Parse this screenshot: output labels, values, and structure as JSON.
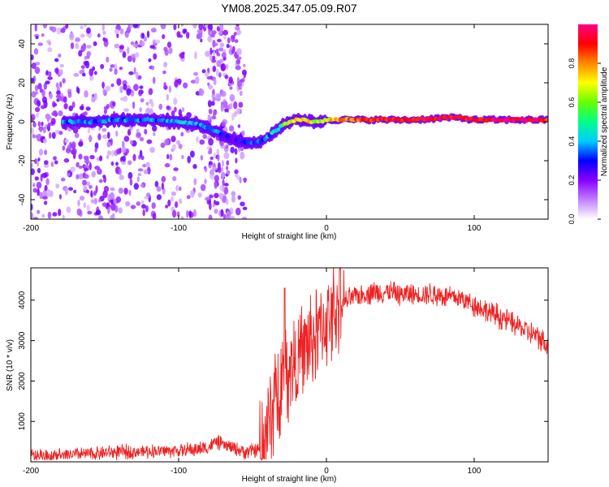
{
  "title": "YM08.2025.347.05.09.R07",
  "chart_data": [
    {
      "type": "heatmap",
      "title": "YM08.2025.347.05.09.R07",
      "xlabel": "Height of straight line (km)",
      "ylabel": "Frequency (Hz)",
      "xlim": [
        -200,
        150
      ],
      "ylim": [
        -50,
        50
      ],
      "xticks": [
        -200,
        -100,
        0,
        100
      ],
      "yticks": [
        -40,
        -20,
        0,
        20,
        40
      ],
      "ridge": {
        "x": [
          -175,
          -160,
          -140,
          -120,
          -100,
          -90,
          -80,
          -70,
          -60,
          -50,
          -45,
          -40,
          -35,
          -30,
          -25,
          -20,
          -15,
          -10,
          -5,
          0,
          5,
          10,
          20,
          40,
          60,
          80,
          90,
          100,
          120,
          150
        ],
        "freq": [
          0,
          0,
          1,
          1,
          0,
          -1,
          -3,
          -7,
          -10,
          -11,
          -10,
          -8,
          -5,
          -2,
          0,
          1,
          1,
          0,
          0,
          1,
          1,
          1,
          1,
          1,
          1,
          2,
          2,
          1,
          1,
          1
        ],
        "amp": [
          0.35,
          0.35,
          0.35,
          0.35,
          0.4,
          0.4,
          0.35,
          0.3,
          0.25,
          0.3,
          0.3,
          0.35,
          0.45,
          0.55,
          0.65,
          0.7,
          0.75,
          0.7,
          0.6,
          0.7,
          0.75,
          0.8,
          0.85,
          0.9,
          0.9,
          0.95,
          0.9,
          0.9,
          0.95,
          0.9
        ]
      },
      "colorbar": {
        "label": "Normalized spectral amplitude",
        "ticks": [
          0.0,
          0.2,
          0.4,
          0.6,
          0.8
        ],
        "range": [
          0,
          1
        ]
      }
    },
    {
      "type": "line",
      "xlabel": "Height of straight line (km)",
      "ylabel": "SNR (10 * v/v)",
      "xlim": [
        -200,
        150
      ],
      "ylim": [
        0,
        4800
      ],
      "xticks": [
        -200,
        -100,
        0,
        100
      ],
      "yticks": [
        1000,
        2000,
        3000,
        4000
      ],
      "series": [
        {
          "name": "SNR",
          "color": "#ee2222",
          "x": [
            -200,
            -180,
            -160,
            -140,
            -120,
            -100,
            -90,
            -80,
            -75,
            -70,
            -60,
            -55,
            -45,
            -40,
            -35,
            -28,
            -20,
            -10,
            0,
            10,
            20,
            30,
            40,
            50,
            60,
            70,
            80,
            90,
            100,
            110,
            120,
            130,
            140,
            150
          ],
          "y": [
            150,
            160,
            200,
            240,
            260,
            280,
            300,
            350,
            500,
            420,
            300,
            250,
            300,
            800,
            1600,
            2300,
            2500,
            3000,
            3500,
            3900,
            4100,
            4200,
            4200,
            4150,
            4150,
            4150,
            4100,
            4050,
            3900,
            3700,
            3550,
            3350,
            3150,
            2900
          ]
        }
      ]
    }
  ]
}
